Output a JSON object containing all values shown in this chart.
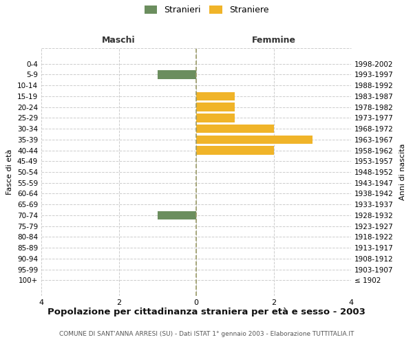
{
  "age_groups": [
    "100+",
    "95-99",
    "90-94",
    "85-89",
    "80-84",
    "75-79",
    "70-74",
    "65-69",
    "60-64",
    "55-59",
    "50-54",
    "45-49",
    "40-44",
    "35-39",
    "30-34",
    "25-29",
    "20-24",
    "15-19",
    "10-14",
    "5-9",
    "0-4"
  ],
  "birth_years": [
    "≤ 1902",
    "1903-1907",
    "1908-1912",
    "1913-1917",
    "1918-1922",
    "1923-1927",
    "1928-1932",
    "1933-1937",
    "1938-1942",
    "1943-1947",
    "1948-1952",
    "1953-1957",
    "1958-1962",
    "1963-1967",
    "1968-1972",
    "1973-1977",
    "1978-1982",
    "1983-1987",
    "1988-1992",
    "1993-1997",
    "1998-2002"
  ],
  "maschi": [
    0,
    0,
    0,
    0,
    0,
    0,
    -1,
    0,
    0,
    0,
    0,
    0,
    0,
    0,
    0,
    0,
    0,
    0,
    0,
    -1,
    0
  ],
  "femmine": [
    0,
    0,
    0,
    0,
    0,
    0,
    0,
    0,
    0,
    0,
    0,
    0,
    2,
    3,
    2,
    1,
    1,
    1,
    0,
    0,
    0
  ],
  "maschi_color": "#6b8e5e",
  "femmine_color": "#f0b429",
  "xlim": [
    -4,
    4
  ],
  "xticks": [
    -4,
    -2,
    0,
    2,
    4
  ],
  "xticklabels": [
    "4",
    "2",
    "0",
    "2",
    "4"
  ],
  "title": "Popolazione per cittadinanza straniera per età e sesso - 2003",
  "subtitle": "COMUNE DI SANT'ANNA ARRESI (SU) - Dati ISTAT 1° gennaio 2003 - Elaborazione TUTTITALIA.IT",
  "ylabel_left": "Fasce di età",
  "ylabel_right": "Anni di nascita",
  "maschi_label": "Maschi",
  "femmine_label": "Femmine",
  "legend_stranieri": "Stranieri",
  "legend_straniere": "Straniere",
  "bg_color": "#ffffff",
  "grid_color": "#cccccc",
  "bar_height": 0.8
}
